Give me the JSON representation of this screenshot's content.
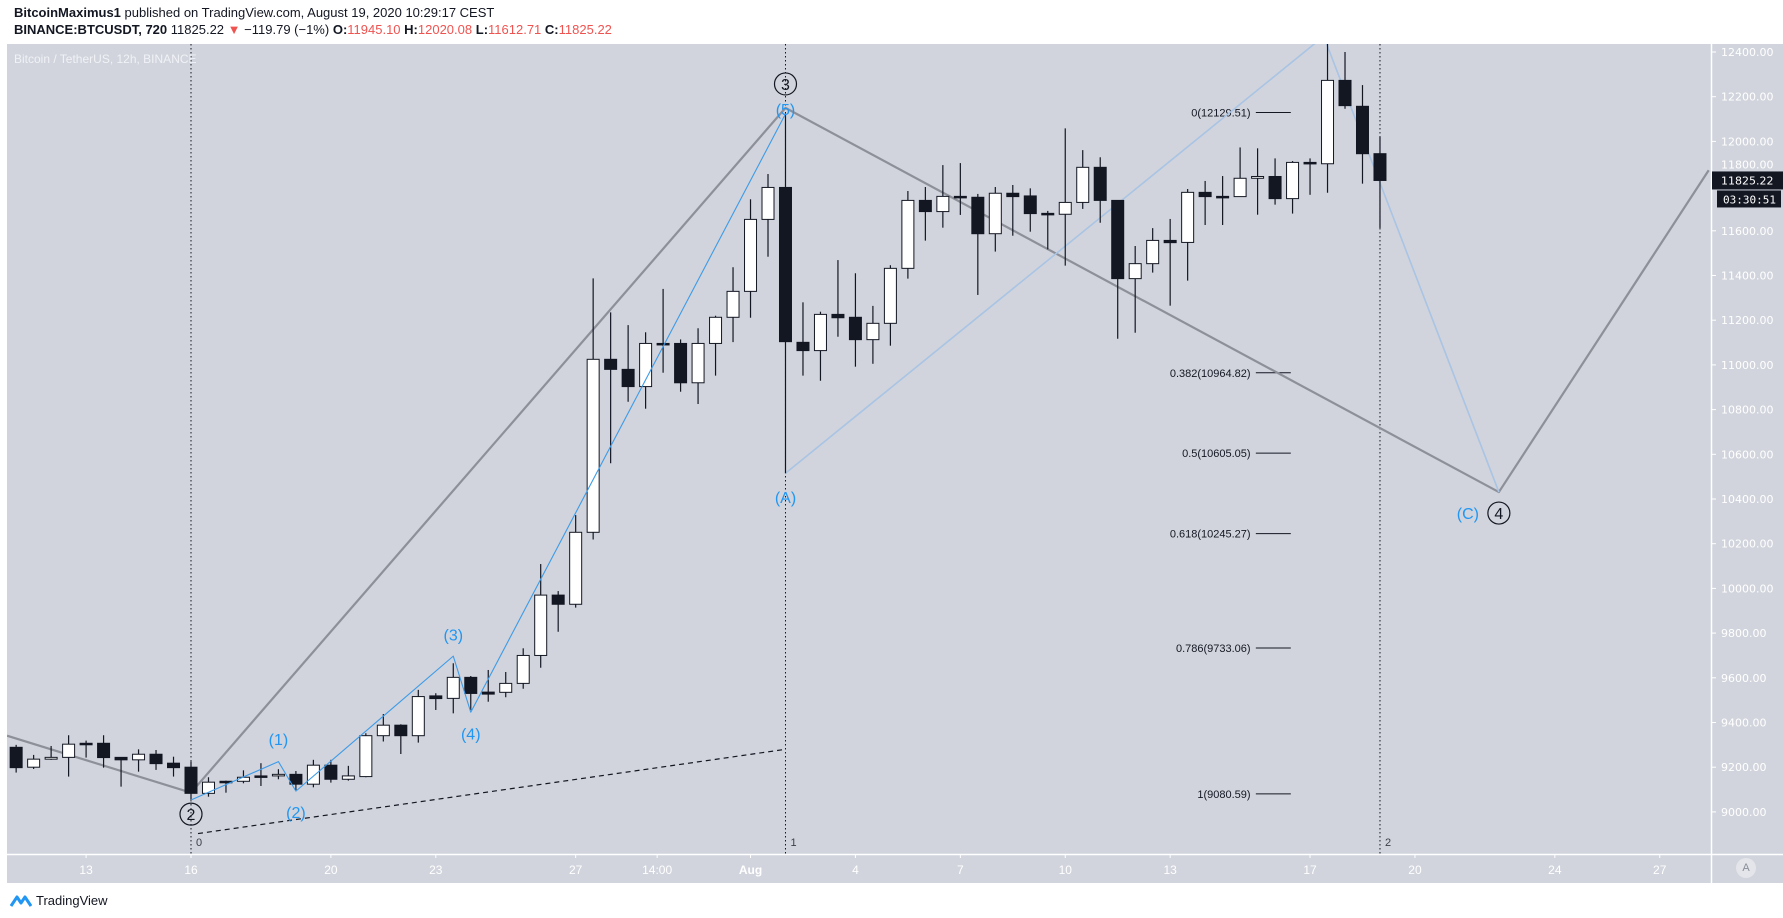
{
  "header": {
    "author": "BitcoinMaximus1",
    "published": "published on TradingView.com, August 19, 2020 10:29:17 CEST",
    "symbol": "BINANCE:BTCUSDT, 720",
    "last": "11825.22",
    "change": "−119.79 (−1%)",
    "o_label": "O:",
    "o": "11945.10",
    "h_label": "H:",
    "h": "12020.08",
    "l_label": "L:",
    "l": "11612.71",
    "c_label": "C:",
    "c": "11825.22"
  },
  "chart_title": "Bitcoin / TetherUS, 12h, BINANCE",
  "colors": {
    "background": "#d1d4dc",
    "up_body": "#ffffff",
    "down_body": "#131722",
    "wave_primary": "#8e9099",
    "wave_minor": "#3d9be9",
    "wave_corrective": "#a9c4e4",
    "change_down": "#ef5350"
  },
  "price_axis": {
    "ticks": [
      "12400.00",
      "12200.00",
      "12000.00",
      "11800.00",
      "11600.00",
      "11400.00",
      "11200.00",
      "11000.00",
      "10800.00",
      "10600.00",
      "10400.00",
      "10200.00",
      "10000.00",
      "9800.00",
      "9600.00",
      "9400.00",
      "9200.00",
      "9000.00"
    ],
    "last_price": "11825.22",
    "countdown": "03:30:51",
    "auto_label": "A"
  },
  "time_axis": {
    "ticks": [
      "13",
      "16",
      "20",
      "23",
      "27",
      "14:00",
      "Aug",
      "4",
      "7",
      "10",
      "13",
      "17",
      "20",
      "24",
      "27"
    ]
  },
  "fib_retracement": [
    {
      "label": "0(12129.51)",
      "price": 12129.51
    },
    {
      "label": "0.382(10964.82)",
      "price": 10964.82
    },
    {
      "label": "0.5(10605.05)",
      "price": 10605.05
    },
    {
      "label": "0.618(10245.27)",
      "price": 10245.27
    },
    {
      "label": "0.786(9733.06)",
      "price": 9733.06
    },
    {
      "label": "1(9080.59)",
      "price": 9080.59
    }
  ],
  "fib_time_labels": [
    "0",
    "1",
    "2"
  ],
  "wave_labels": {
    "primary": [
      "2",
      "3",
      "4"
    ],
    "minor": [
      "(1)",
      "(2)",
      "(3)",
      "(4)",
      "(5)"
    ],
    "corrective": [
      "(A)",
      "(C)"
    ]
  },
  "footer": {
    "brand": "TradingView"
  },
  "chart_data": {
    "type": "candlestick",
    "interval": "12h",
    "candles": [
      {
        "t": "Jul 11 00:00",
        "o": 9289,
        "h": 9300,
        "l": 9176,
        "c": 9198
      },
      {
        "t": "Jul 11 12:00",
        "o": 9200,
        "h": 9255,
        "l": 9192,
        "c": 9236
      },
      {
        "t": "Jul 12 00:00",
        "o": 9236,
        "h": 9295,
        "l": 9233,
        "c": 9244
      },
      {
        "t": "Jul 12 12:00",
        "o": 9244,
        "h": 9343,
        "l": 9158,
        "c": 9303
      },
      {
        "t": "Jul 13 00:00",
        "o": 9307,
        "h": 9319,
        "l": 9243,
        "c": 9301
      },
      {
        "t": "Jul 13 12:00",
        "o": 9307,
        "h": 9343,
        "l": 9198,
        "c": 9243
      },
      {
        "t": "Jul 14 00:00",
        "o": 9244,
        "h": 9244,
        "l": 9113,
        "c": 9233
      },
      {
        "t": "Jul 14 12:00",
        "o": 9233,
        "h": 9280,
        "l": 9180,
        "c": 9258
      },
      {
        "t": "Jul 15 00:00",
        "o": 9258,
        "h": 9277,
        "l": 9188,
        "c": 9216
      },
      {
        "t": "Jul 15 12:00",
        "o": 9218,
        "h": 9247,
        "l": 9158,
        "c": 9198
      },
      {
        "t": "Jul 16 00:00",
        "o": 9200,
        "h": 9225,
        "l": 9054,
        "c": 9083
      },
      {
        "t": "Jul 16 12:00",
        "o": 9083,
        "h": 9155,
        "l": 9068,
        "c": 9133
      },
      {
        "t": "Jul 17 00:00",
        "o": 9137,
        "h": 9140,
        "l": 9086,
        "c": 9131
      },
      {
        "t": "Jul 17 12:00",
        "o": 9137,
        "h": 9186,
        "l": 9128,
        "c": 9155
      },
      {
        "t": "Jul 18 00:00",
        "o": 9161,
        "h": 9218,
        "l": 9116,
        "c": 9155
      },
      {
        "t": "Jul 18 12:00",
        "o": 9161,
        "h": 9191,
        "l": 9146,
        "c": 9168
      },
      {
        "t": "Jul 19 00:00",
        "o": 9168,
        "h": 9183,
        "l": 9098,
        "c": 9124
      },
      {
        "t": "Jul 19 12:00",
        "o": 9124,
        "h": 9233,
        "l": 9110,
        "c": 9209
      },
      {
        "t": "Jul 20 00:00",
        "o": 9209,
        "h": 9233,
        "l": 9131,
        "c": 9146
      },
      {
        "t": "Jul 20 12:00",
        "o": 9146,
        "h": 9206,
        "l": 9140,
        "c": 9161
      },
      {
        "t": "Jul 21 00:00",
        "o": 9158,
        "h": 9352,
        "l": 9155,
        "c": 9341
      },
      {
        "t": "Jul 21 12:00",
        "o": 9341,
        "h": 9438,
        "l": 9315,
        "c": 9388
      },
      {
        "t": "Jul 22 00:00",
        "o": 9388,
        "h": 9392,
        "l": 9259,
        "c": 9341
      },
      {
        "t": "Jul 22 12:00",
        "o": 9341,
        "h": 9546,
        "l": 9310,
        "c": 9516
      },
      {
        "t": "Jul 23 00:00",
        "o": 9519,
        "h": 9531,
        "l": 9456,
        "c": 9507
      },
      {
        "t": "Jul 23 12:00",
        "o": 9508,
        "h": 9665,
        "l": 9441,
        "c": 9602
      },
      {
        "t": "Jul 24 00:00",
        "o": 9602,
        "h": 9608,
        "l": 9456,
        "c": 9530
      },
      {
        "t": "Jul 24 12:00",
        "o": 9536,
        "h": 9635,
        "l": 9493,
        "c": 9527
      },
      {
        "t": "Jul 25 00:00",
        "o": 9535,
        "h": 9626,
        "l": 9513,
        "c": 9575
      },
      {
        "t": "Jul 25 12:00",
        "o": 9575,
        "h": 9732,
        "l": 9551,
        "c": 9700
      },
      {
        "t": "Jul 26 00:00",
        "o": 9700,
        "h": 10109,
        "l": 9645,
        "c": 9970
      },
      {
        "t": "Jul 26 12:00",
        "o": 9970,
        "h": 9988,
        "l": 9806,
        "c": 9929
      },
      {
        "t": "Jul 27 00:00",
        "o": 9929,
        "h": 10328,
        "l": 9914,
        "c": 10251
      },
      {
        "t": "Jul 27 12:00",
        "o": 10251,
        "h": 11387,
        "l": 10219,
        "c": 11025
      },
      {
        "t": "Jul 28 00:00",
        "o": 11025,
        "h": 11235,
        "l": 10560,
        "c": 10980
      },
      {
        "t": "Jul 28 12:00",
        "o": 10980,
        "h": 11178,
        "l": 10835,
        "c": 10903
      },
      {
        "t": "Jul 29 00:00",
        "o": 10903,
        "h": 11146,
        "l": 10804,
        "c": 11096
      },
      {
        "t": "Jul 29 12:00",
        "o": 11096,
        "h": 11340,
        "l": 10965,
        "c": 11093
      },
      {
        "t": "Jul 30 00:00",
        "o": 11096,
        "h": 11114,
        "l": 10880,
        "c": 10920
      },
      {
        "t": "Jul 30 12:00",
        "o": 10920,
        "h": 11164,
        "l": 10825,
        "c": 11096
      },
      {
        "t": "Jul 31 00:00",
        "o": 11096,
        "h": 11220,
        "l": 10952,
        "c": 11213
      },
      {
        "t": "Jul 31 12:00",
        "o": 11213,
        "h": 11437,
        "l": 11102,
        "c": 11329
      },
      {
        "t": "Aug 1 00:00",
        "o": 11329,
        "h": 11741,
        "l": 11211,
        "c": 11651
      },
      {
        "t": "Aug 1 12:00",
        "o": 11651,
        "h": 11854,
        "l": 11484,
        "c": 11794
      },
      {
        "t": "Aug 2 00:00",
        "o": 11794,
        "h": 12123,
        "l": 10515,
        "c": 11104
      },
      {
        "t": "Aug 2 12:00",
        "o": 11101,
        "h": 11280,
        "l": 10952,
        "c": 11064
      },
      {
        "t": "Aug 3 00:00",
        "o": 11064,
        "h": 11238,
        "l": 10929,
        "c": 11226
      },
      {
        "t": "Aug 3 12:00",
        "o": 11226,
        "h": 11469,
        "l": 11126,
        "c": 11211
      },
      {
        "t": "Aug 4 00:00",
        "o": 11213,
        "h": 11410,
        "l": 10992,
        "c": 11113
      },
      {
        "t": "Aug 4 12:00",
        "o": 11113,
        "h": 11264,
        "l": 11005,
        "c": 11186
      },
      {
        "t": "Aug 5 00:00",
        "o": 11186,
        "h": 11446,
        "l": 11086,
        "c": 11432
      },
      {
        "t": "Aug 5 12:00",
        "o": 11432,
        "h": 11778,
        "l": 11386,
        "c": 11736
      },
      {
        "t": "Aug 6 00:00",
        "o": 11736,
        "h": 11796,
        "l": 11556,
        "c": 11686
      },
      {
        "t": "Aug 6 12:00",
        "o": 11686,
        "h": 11894,
        "l": 11614,
        "c": 11754
      },
      {
        "t": "Aug 7 00:00",
        "o": 11754,
        "h": 11903,
        "l": 11671,
        "c": 11748
      },
      {
        "t": "Aug 7 12:00",
        "o": 11750,
        "h": 11765,
        "l": 11313,
        "c": 11587
      },
      {
        "t": "Aug 8 00:00",
        "o": 11587,
        "h": 11796,
        "l": 11507,
        "c": 11768
      },
      {
        "t": "Aug 8 12:00",
        "o": 11768,
        "h": 11805,
        "l": 11578,
        "c": 11753
      },
      {
        "t": "Aug 9 00:00",
        "o": 11756,
        "h": 11790,
        "l": 11596,
        "c": 11677
      },
      {
        "t": "Aug 9 12:00",
        "o": 11678,
        "h": 11689,
        "l": 11517,
        "c": 11672
      },
      {
        "t": "Aug 10 00:00",
        "o": 11674,
        "h": 12058,
        "l": 11444,
        "c": 11727
      },
      {
        "t": "Aug 10 12:00",
        "o": 11727,
        "h": 11961,
        "l": 11698,
        "c": 11884
      },
      {
        "t": "Aug 11 00:00",
        "o": 11884,
        "h": 11929,
        "l": 11636,
        "c": 11736
      },
      {
        "t": "Aug 11 12:00",
        "o": 11736,
        "h": 11736,
        "l": 11117,
        "c": 11386
      },
      {
        "t": "Aug 12 00:00",
        "o": 11386,
        "h": 11532,
        "l": 11144,
        "c": 11453
      },
      {
        "t": "Aug 12 12:00",
        "o": 11453,
        "h": 11612,
        "l": 11413,
        "c": 11557
      },
      {
        "t": "Aug 13 00:00",
        "o": 11557,
        "h": 11653,
        "l": 11265,
        "c": 11547
      },
      {
        "t": "Aug 13 12:00",
        "o": 11548,
        "h": 11787,
        "l": 11377,
        "c": 11772
      },
      {
        "t": "Aug 14 00:00",
        "o": 11772,
        "h": 11823,
        "l": 11626,
        "c": 11753
      },
      {
        "t": "Aug 14 12:00",
        "o": 11754,
        "h": 11845,
        "l": 11626,
        "c": 11753
      },
      {
        "t": "Aug 15 00:00",
        "o": 11753,
        "h": 11973,
        "l": 11753,
        "c": 11835
      },
      {
        "t": "Aug 15 12:00",
        "o": 11835,
        "h": 11969,
        "l": 11672,
        "c": 11843
      },
      {
        "t": "Aug 16 00:00",
        "o": 11843,
        "h": 11924,
        "l": 11717,
        "c": 11744
      },
      {
        "t": "Aug 16 12:00",
        "o": 11744,
        "h": 11912,
        "l": 11677,
        "c": 11906
      },
      {
        "t": "Aug 17 00:00",
        "o": 11906,
        "h": 11924,
        "l": 11761,
        "c": 11900
      },
      {
        "t": "Aug 17 12:00",
        "o": 11900,
        "h": 12470,
        "l": 11770,
        "c": 12273
      },
      {
        "t": "Aug 18 00:00",
        "o": 12273,
        "h": 12400,
        "l": 12146,
        "c": 12160
      },
      {
        "t": "Aug 18 12:00",
        "o": 12157,
        "h": 12252,
        "l": 11811,
        "c": 11945
      },
      {
        "t": "Aug 19 00:00",
        "o": 11945.1,
        "h": 12020.08,
        "l": 11612.71,
        "c": 11825.22
      }
    ],
    "ylim": [
      8850,
      12430
    ]
  }
}
